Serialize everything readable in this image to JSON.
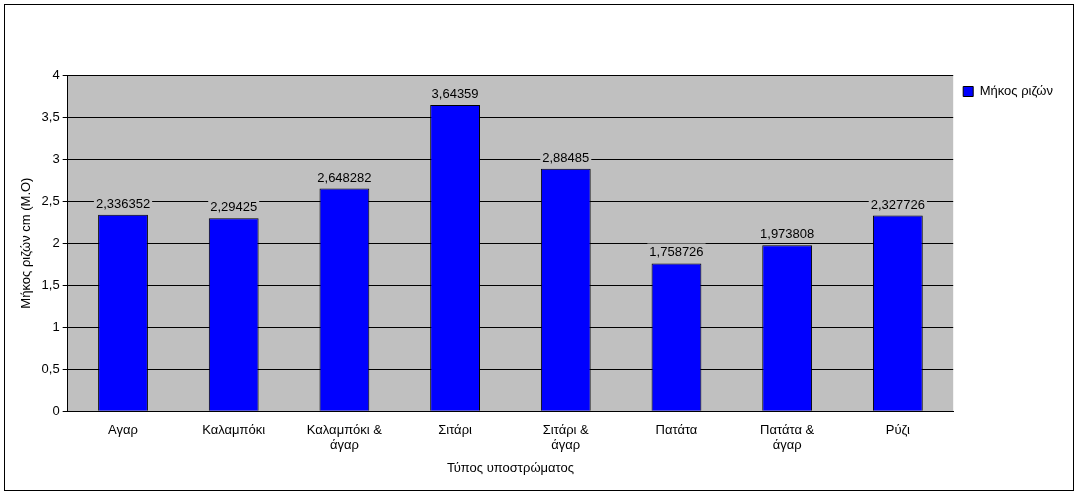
{
  "chart_data": {
    "type": "bar",
    "xlabel": "Τύπος υποστρώματος",
    "ylabel": "Μήκος ριζών cm (Μ.Ο)",
    "categories": [
      "Αγαρ",
      "Καλαμπόκι",
      "Καλαμπόκι & άγαρ",
      "Σιτάρι",
      "Σιτάρι & άγαρ",
      "Πατάτα",
      "Πατάτα & άγαρ",
      "Ρύζι"
    ],
    "series": [
      {
        "name": "Μήκος ριζών",
        "color": "#0000ff",
        "values": [
          2.336352,
          2.29425,
          2.648282,
          3.64359,
          2.88485,
          1.758726,
          1.973808,
          2.327726
        ],
        "value_labels": [
          "2,336352",
          "2,29425",
          "2,648282",
          "3,64359",
          "2,88485",
          "1,758726",
          "1,973808",
          "2,327726"
        ]
      }
    ],
    "ylim": [
      0,
      4
    ],
    "yticks": [
      0,
      {
        "value": 0.5,
        "label": "0,5"
      },
      1,
      {
        "value": 1.5,
        "label": "1,5"
      },
      2,
      {
        "value": 2.5,
        "label": "2,5"
      },
      3,
      {
        "value": 3.5,
        "label": "3,5"
      },
      4
    ],
    "grid": "y",
    "legend": "top right"
  }
}
